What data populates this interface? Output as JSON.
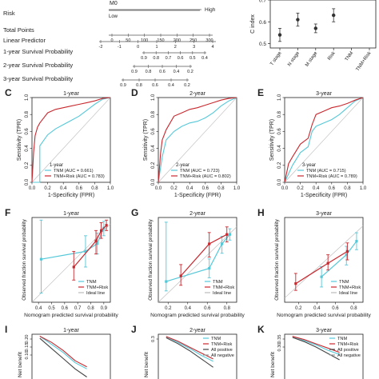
{
  "nomogram": {
    "labels": [
      "Risk",
      "Total Points",
      "Linear Predictor",
      "1-year Survival Probability",
      "2-year Survival Probability",
      "3-year Survival Probability"
    ],
    "top_left": "M0",
    "risk_low": "Low",
    "risk_high": "High",
    "total_ticks": [
      "0",
      "50",
      "100",
      "150",
      "200",
      "250",
      "300"
    ],
    "lp_ticks": [
      "-2",
      "-1",
      "0",
      "1",
      "2",
      "3",
      "4"
    ],
    "y1_ticks": [
      "0.9",
      "0.8",
      "0.7",
      "0.6",
      "0.5",
      "0.4"
    ],
    "y2_ticks": [
      "0.9",
      "0.8",
      "0.6",
      "0.4",
      "0.2"
    ],
    "y3_ticks": [
      "0.9",
      "0.8",
      "0.6",
      "0.4",
      "0.2"
    ]
  },
  "cindex_panel": {
    "ylabel": "C index",
    "yticks": [
      "0.7",
      "0.6",
      "0.5"
    ],
    "chart_data": {
      "type": "scatter",
      "categories": [
        "T stage",
        "N stage",
        "M stage",
        "Risk",
        "TNM",
        "TNM+Risk"
      ],
      "values": [
        0.54,
        0.61,
        0.57,
        0.63,
        null,
        null
      ],
      "lower": [
        0.51,
        0.58,
        0.55,
        0.6,
        null,
        null
      ],
      "upper": [
        0.57,
        0.64,
        0.59,
        0.66,
        null,
        null
      ],
      "ylim": [
        0.48,
        0.7
      ]
    }
  },
  "roc_panels": [
    {
      "letter": "C",
      "title": "1-year",
      "xlabel": "1-Specificity (FPR)",
      "ylabel": "Sensitivity (TPR)",
      "xticks": [
        "0.0",
        "0.2",
        "0.4",
        "0.6",
        "0.8",
        "1.0"
      ],
      "yticks": [
        "0.0",
        "0.2",
        "0.4",
        "0.6",
        "0.8",
        "1.0"
      ],
      "legend_title": "1-year",
      "chart_data": {
        "type": "line",
        "series": [
          {
            "name": "TNM (AUC = 0.661)",
            "color": "#55c8d8",
            "x": [
              0,
              0.1,
              0.1,
              0.2,
              0.3,
              0.4,
              0.5,
              0.6,
              0.7,
              0.8,
              0.9,
              1.0
            ],
            "y": [
              0,
              0,
              0.43,
              0.56,
              0.63,
              0.68,
              0.73,
              0.78,
              0.85,
              0.92,
              0.98,
              1.0
            ]
          },
          {
            "name": "TNM+Risk (AUC = 0.783)",
            "color": "#c8282e",
            "x": [
              0,
              0.02,
              0.04,
              0.07,
              0.1,
              0.15,
              0.2,
              0.3,
              0.4,
              0.5,
              0.6,
              0.7,
              0.8,
              0.9,
              1.0
            ],
            "y": [
              0,
              0.35,
              0.55,
              0.65,
              0.7,
              0.76,
              0.82,
              0.86,
              0.88,
              0.9,
              0.92,
              0.94,
              0.96,
              0.99,
              1.0
            ]
          }
        ]
      }
    },
    {
      "letter": "D",
      "title": "2-year",
      "xlabel": "1-Specificity (FPR)",
      "ylabel": "Sensitivity (TPR)",
      "xticks": [
        "0.0",
        "0.2",
        "0.4",
        "0.6",
        "0.8",
        "1.0"
      ],
      "yticks": [
        "0.0",
        "0.2",
        "0.4",
        "0.6",
        "0.8",
        "1.0"
      ],
      "legend_title": "2-year",
      "chart_data": {
        "type": "line",
        "series": [
          {
            "name": "TNM (AUC = 0.723)",
            "color": "#55c8d8",
            "x": [
              0,
              0.05,
              0.1,
              0.2,
              0.3,
              0.4,
              0.5,
              0.6,
              0.7,
              0.8,
              0.9,
              1.0
            ],
            "y": [
              0,
              0.3,
              0.5,
              0.6,
              0.66,
              0.7,
              0.72,
              0.76,
              0.82,
              0.9,
              0.96,
              1.0
            ]
          },
          {
            "name": "TNM+Risk (AUC = 0.802)",
            "color": "#c8282e",
            "x": [
              0,
              0.03,
              0.05,
              0.1,
              0.15,
              0.2,
              0.3,
              0.4,
              0.5,
              0.6,
              0.7,
              0.8,
              0.9,
              1.0
            ],
            "y": [
              0,
              0.35,
              0.5,
              0.62,
              0.7,
              0.78,
              0.82,
              0.86,
              0.88,
              0.91,
              0.94,
              0.97,
              0.99,
              1.0
            ]
          }
        ]
      }
    },
    {
      "letter": "E",
      "title": "3-year",
      "xlabel": "1-Specificity (FPR)",
      "ylabel": "Sensitivity (TPR)",
      "xticks": [
        "0.0",
        "0.2",
        "0.4",
        "0.6",
        "0.8",
        "1.0"
      ],
      "yticks": [
        "0.0",
        "0.2",
        "0.4",
        "0.6",
        "0.8",
        "1.0"
      ],
      "legend_title": "3-year",
      "chart_data": {
        "type": "line",
        "series": [
          {
            "name": "TNM (AUC = 0.715)",
            "color": "#55c8d8",
            "x": [
              0,
              0.1,
              0.2,
              0.3,
              0.35,
              0.4,
              0.5,
              0.6,
              0.7,
              0.8,
              0.9,
              1.0
            ],
            "y": [
              0,
              0.2,
              0.35,
              0.42,
              0.6,
              0.66,
              0.7,
              0.74,
              0.8,
              0.88,
              0.96,
              1.0
            ]
          },
          {
            "name": "TNM+Risk (AUC = 0.789)",
            "color": "#c8282e",
            "x": [
              0,
              0.05,
              0.1,
              0.2,
              0.3,
              0.35,
              0.4,
              0.5,
              0.6,
              0.7,
              0.8,
              0.9,
              1.0
            ],
            "y": [
              0,
              0.22,
              0.3,
              0.45,
              0.52,
              0.68,
              0.8,
              0.84,
              0.88,
              0.9,
              0.93,
              0.97,
              1.0
            ]
          }
        ]
      }
    }
  ],
  "calibration_panels": [
    {
      "letter": "F",
      "title": "1-year",
      "xlabel": "Nomogram predicted survival probability",
      "ylabel": "Observed fraction survival probability",
      "xticks": [
        "0.4",
        "0.5",
        "0.6",
        "0.7",
        "0.8",
        "0.9"
      ],
      "xlim": [
        0.35,
        0.95
      ],
      "ylim": [
        0.35,
        1.0
      ],
      "legend": [
        "TNM",
        "TNM+Risk",
        "Ideal line"
      ],
      "chart_data": {
        "type": "scatter",
        "series": [
          {
            "name": "TNM",
            "color": "#55c8d8",
            "x": [
              0.42,
              0.76,
              0.85,
              0.9
            ],
            "y": [
              0.68,
              0.74,
              0.8,
              0.92
            ],
            "lower": [
              0.42,
              0.62,
              0.72,
              0.86
            ],
            "upper": [
              0.98,
              0.86,
              0.88,
              0.97
            ]
          },
          {
            "name": "TNM+Risk",
            "color": "#c8282e",
            "x": [
              0.67,
              0.84,
              0.88,
              0.92
            ],
            "y": [
              0.62,
              0.82,
              0.9,
              0.94
            ],
            "lower": [
              0.52,
              0.72,
              0.84,
              0.9
            ],
            "upper": [
              0.74,
              0.9,
              0.96,
              0.98
            ]
          }
        ]
      }
    },
    {
      "letter": "G",
      "title": "2-year",
      "xlabel": "Nomogram predicted survival probability",
      "ylabel": "Observed fraction survival probability",
      "xticks": [
        "0.2",
        "0.4",
        "0.6",
        "0.8"
      ],
      "xlim": [
        0.1,
        0.9
      ],
      "ylim": [
        0.1,
        1.0
      ],
      "legend": [
        "TNM",
        "TNM+Risk",
        "Ideal line"
      ],
      "chart_data": {
        "type": "scatter",
        "series": [
          {
            "name": "TNM",
            "color": "#55c8d8",
            "x": [
              0.18,
              0.62,
              0.75,
              0.83
            ],
            "y": [
              0.32,
              0.46,
              0.72,
              0.82
            ],
            "lower": [
              0.22,
              0.36,
              0.62,
              0.76
            ],
            "upper": [
              0.95,
              0.56,
              0.8,
              0.88
            ]
          },
          {
            "name": "TNM+Risk",
            "color": "#c8282e",
            "x": [
              0.33,
              0.62,
              0.8
            ],
            "y": [
              0.38,
              0.72,
              0.82
            ],
            "lower": [
              0.28,
              0.58,
              0.74
            ],
            "upper": [
              0.5,
              0.84,
              0.9
            ]
          }
        ]
      }
    },
    {
      "letter": "H",
      "title": "3-year",
      "xlabel": "Nomogram predicted survival probability",
      "ylabel": "Observed fraction survival probability",
      "xticks": [
        "0.2",
        "0.4",
        "0.6",
        "0.8"
      ],
      "xlim": [
        0.05,
        0.9
      ],
      "ylim": [
        0.0,
        1.0
      ],
      "legend": [
        "TNM",
        "TNM+Risk",
        "Ideal line"
      ],
      "chart_data": {
        "type": "scatter",
        "series": [
          {
            "name": "TNM",
            "color": "#55c8d8",
            "x": [
              0.45,
              0.72,
              0.83
            ],
            "y": [
              0.3,
              0.56,
              0.72
            ],
            "lower": [
              0.18,
              0.44,
              0.62
            ],
            "upper": [
              0.42,
              0.66,
              0.82
            ]
          },
          {
            "name": "TNM+Risk",
            "color": "#c8282e",
            "x": [
              0.17,
              0.52,
              0.73
            ],
            "y": [
              0.22,
              0.46,
              0.6
            ],
            "lower": [
              0.14,
              0.38,
              0.5
            ],
            "upper": [
              0.34,
              0.56,
              0.7
            ]
          }
        ]
      }
    }
  ],
  "dca_panels": [
    {
      "letter": "I",
      "title": "1-year",
      "ylabel": "Net benefit",
      "yticks": [
        "0.20",
        "0.15",
        "0.10"
      ],
      "ylim": [
        0.0,
        0.22
      ],
      "legend": [],
      "chart_data": {
        "type": "line",
        "series": [
          {
            "name": "TNM",
            "color": "#55c8d8",
            "x": [
              0.02,
              0.05,
              0.08,
              0.11,
              0.14
            ],
            "y": [
              0.21,
              0.17,
              0.13,
              0.08,
              0.05
            ]
          },
          {
            "name": "TNM+Risk",
            "color": "#c8282e",
            "x": [
              0.02,
              0.05,
              0.08,
              0.11,
              0.14
            ],
            "y": [
              0.21,
              0.18,
              0.14,
              0.09,
              0.06
            ]
          },
          {
            "name": "All positive",
            "color": "#444444",
            "x": [
              0.02,
              0.05,
              0.08,
              0.11,
              0.14
            ],
            "y": [
              0.2,
              0.15,
              0.1,
              0.05,
              0.01
            ]
          }
        ]
      }
    },
    {
      "letter": "J",
      "title": "2-year",
      "ylabel": "Net benefit",
      "yticks": [
        "0.3"
      ],
      "ylim": [
        0.0,
        0.38
      ],
      "legend": [
        "TNM",
        "TNM+Risk",
        "All positive",
        "All negative"
      ],
      "chart_data": {
        "type": "line",
        "series": [
          {
            "name": "TNM",
            "color": "#55c8d8",
            "x": [
              0.02,
              0.05,
              0.08,
              0.11,
              0.14
            ],
            "y": [
              0.36,
              0.31,
              0.26,
              0.2,
              0.15
            ]
          },
          {
            "name": "TNM+Risk",
            "color": "#c8282e",
            "x": [
              0.02,
              0.05,
              0.08,
              0.11,
              0.14
            ],
            "y": [
              0.36,
              0.32,
              0.27,
              0.22,
              0.17
            ]
          },
          {
            "name": "All positive",
            "color": "#444444",
            "x": [
              0.02,
              0.05,
              0.08,
              0.11,
              0.14
            ],
            "y": [
              0.35,
              0.3,
              0.24,
              0.17,
              0.1
            ]
          }
        ]
      }
    },
    {
      "letter": "K",
      "title": "3-year",
      "ylabel": "Net benefit",
      "yticks": [
        "0.35",
        "0.30"
      ],
      "ylim": [
        0.0,
        0.42
      ],
      "legend": [
        "TNM",
        "TNM+Risk",
        "All positive",
        "All negative"
      ],
      "chart_data": {
        "type": "line",
        "series": [
          {
            "name": "TNM",
            "color": "#55c8d8",
            "x": [
              0.02,
              0.05,
              0.08,
              0.11,
              0.14
            ],
            "y": [
              0.4,
              0.36,
              0.32,
              0.27,
              0.23
            ]
          },
          {
            "name": "TNM+Risk",
            "color": "#c8282e",
            "x": [
              0.02,
              0.05,
              0.08,
              0.11,
              0.14
            ],
            "y": [
              0.4,
              0.37,
              0.33,
              0.29,
              0.25
            ]
          },
          {
            "name": "All positive",
            "color": "#444444",
            "x": [
              0.02,
              0.05,
              0.08,
              0.11,
              0.14
            ],
            "y": [
              0.39,
              0.35,
              0.3,
              0.24,
              0.18
            ]
          }
        ]
      }
    }
  ]
}
